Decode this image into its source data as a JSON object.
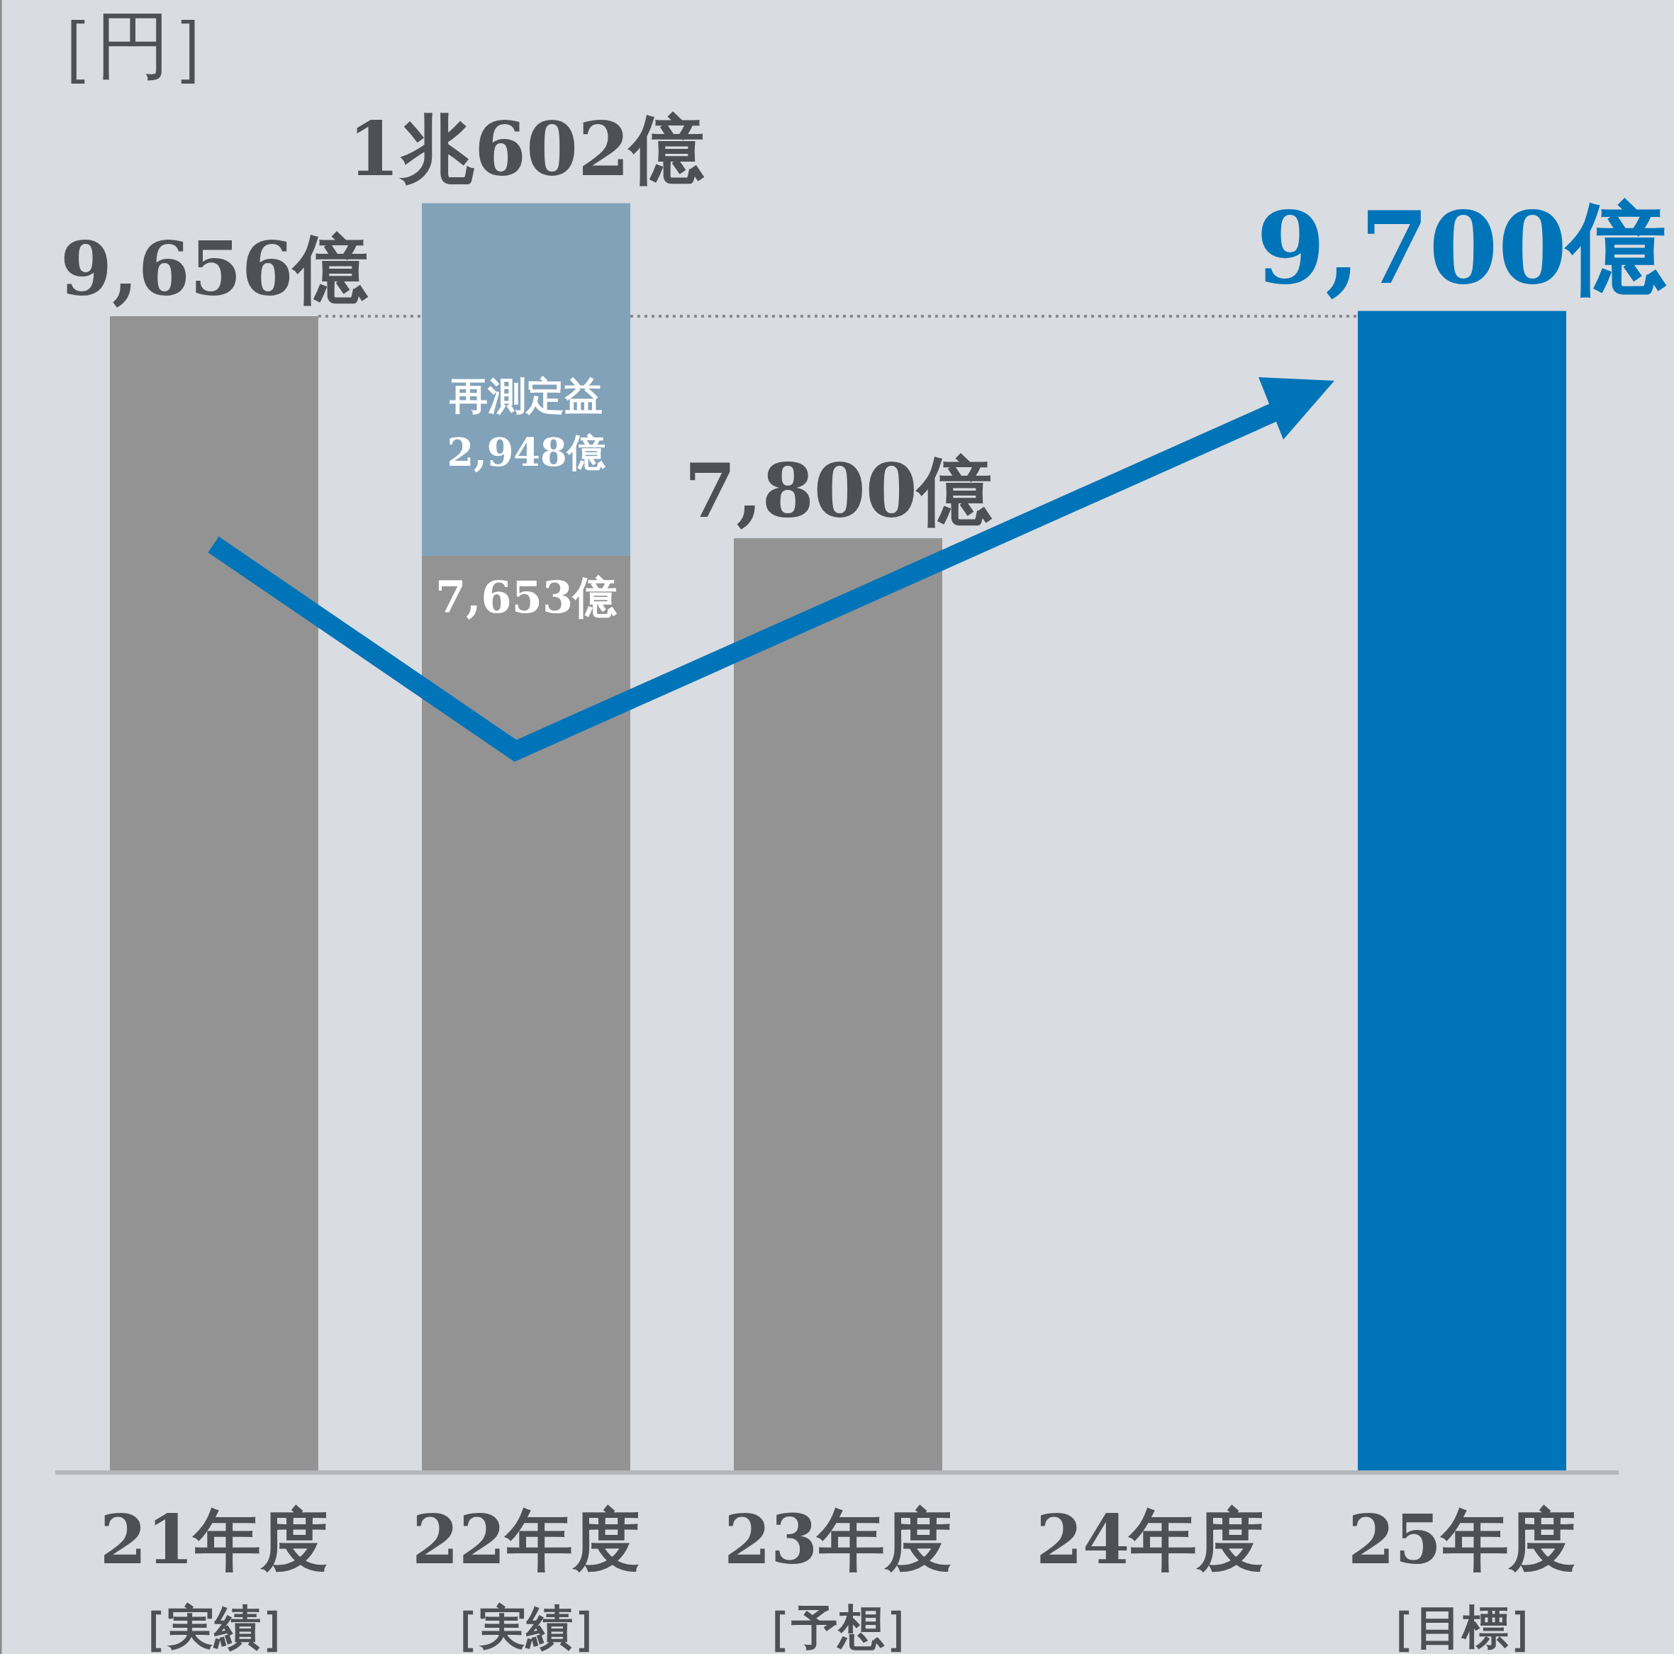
{
  "chart_data": {
    "type": "bar",
    "ylabel": "［円］",
    "stacked": true,
    "tick_labels": "x",
    "ylim": [
      0,
      12300
    ],
    "categories": [
      "21年度［実績］",
      "22年度［実績］",
      "23年度［予想］",
      "24年度",
      "25年度［目標］"
    ],
    "series": [
      {
        "colors": [
          "#939393",
          "#939393",
          "#939393",
          null,
          "#0074b9"
        ],
        "values": [
          9656,
          7653,
          7800,
          null,
          9700
        ],
        "value_labels": [
          "9,656億",
          "7,653億",
          "7,800億",
          null,
          "9,700億"
        ]
      },
      {
        "name": "再測定益",
        "color": "#82a2b9",
        "values": [
          null,
          2948,
          null,
          null,
          null
        ],
        "value_labels": [
          null,
          "2,948億",
          null,
          null,
          null
        ]
      }
    ],
    "totals": [
      null,
      "1兆602億",
      null,
      null,
      null
    ],
    "ref_lines": [
      {
        "axis": "y",
        "value": 9656,
        "color": "#8a8a8a",
        "line_style": "dotted"
      }
    ]
  }
}
